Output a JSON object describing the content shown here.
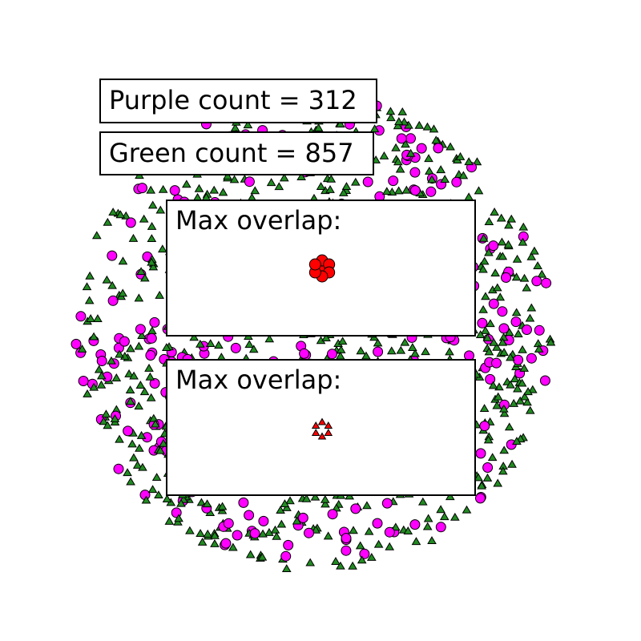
{
  "counts": {
    "purple_label": "Purple count = 312",
    "green_label": "Green count = 857"
  },
  "panels": [
    {
      "title": "Max overlap:",
      "marker": "circle",
      "count": 7
    },
    {
      "title": "Max overlap:",
      "marker": "triangle",
      "count": 6
    }
  ],
  "colors": {
    "purple": "#ff00ff",
    "green": "#228b22",
    "overlap": "#ff0000",
    "edge": "#000000"
  },
  "chart_data": {
    "type": "scatter",
    "title": "",
    "xlabel": "",
    "ylabel": "",
    "axes_visible": false,
    "grid": false,
    "series": [
      {
        "marker": "circle",
        "color": "#ff00ff",
        "count": 312
      },
      {
        "marker": "triangle",
        "color": "#228b22",
        "count": 857
      }
    ]
  }
}
